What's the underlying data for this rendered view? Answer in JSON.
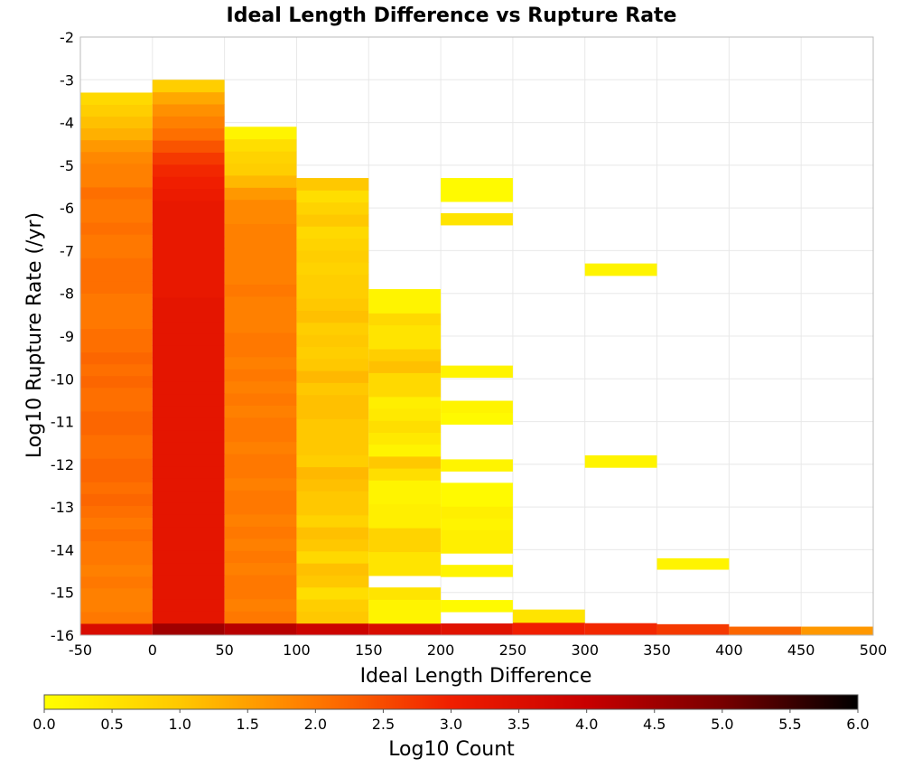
{
  "chart_data": {
    "type": "heatmap",
    "title": "Ideal Length Difference vs Rupture Rate",
    "xlabel": "Ideal Length Difference",
    "ylabel": "Log10 Rupture Rate (/yr)",
    "xlim": [
      -50,
      500
    ],
    "ylim": [
      -16,
      -2
    ],
    "x_bin_width": 50,
    "y_bin_height": 0.286,
    "grid": true,
    "x_ticks": [
      "-50",
      "0",
      "50",
      "100",
      "150",
      "200",
      "250",
      "300",
      "350",
      "400",
      "450",
      "500"
    ],
    "y_ticks": [
      "-2",
      "-3",
      "-4",
      "-5",
      "-6",
      "-7",
      "-8",
      "-9",
      "-10",
      "-11",
      "-12",
      "-13",
      "-14",
      "-15",
      "-16"
    ],
    "colorbar": {
      "label": "Log10 Count",
      "range": [
        0,
        6
      ],
      "ticks": [
        "0.0",
        "0.5",
        "1.0",
        "1.5",
        "2.0",
        "2.5",
        "3.0",
        "3.5",
        "4.0",
        "4.5",
        "5.0",
        "5.5",
        "6.0"
      ],
      "colors": [
        "#ffff00",
        "#ffc800",
        "#ff7800",
        "#f01e00",
        "#c80000",
        "#780000",
        "#000000"
      ]
    },
    "columns": [
      {
        "x0": -50,
        "y0": -16.0,
        "y1": -3.3,
        "values": [
          3.6,
          2.0,
          1.9,
          1.9,
          2.0,
          1.9,
          2.0,
          2.0,
          2.1,
          2.0,
          2.1,
          2.2,
          2.1,
          2.2,
          2.2,
          2.1,
          2.1,
          2.2,
          2.2,
          2.1,
          2.1,
          2.2,
          2.1,
          2.2,
          2.1,
          2.1,
          2.0,
          2.0,
          2.0,
          2.1,
          2.1,
          2.1,
          2.0,
          2.0,
          2.1,
          2.0,
          2.0,
          2.1,
          1.9,
          1.9,
          1.8,
          1.6,
          1.3,
          1.1,
          0.9,
          0.7
        ]
      },
      {
        "x0": 0,
        "y0": -16.0,
        "y1": -3.0,
        "values": [
          4.5,
          3.3,
          3.3,
          3.3,
          3.3,
          3.3,
          3.3,
          3.3,
          3.3,
          3.3,
          3.3,
          3.3,
          3.3,
          3.3,
          3.3,
          3.3,
          3.3,
          3.3,
          3.3,
          3.3,
          3.3,
          3.3,
          3.3,
          3.3,
          3.3,
          3.3,
          3.3,
          3.3,
          3.2,
          3.2,
          3.2,
          3.2,
          3.2,
          3.2,
          3.2,
          3.2,
          3.1,
          3.0,
          2.9,
          2.7,
          2.4,
          2.1,
          1.9,
          1.7,
          1.4,
          0.9
        ]
      },
      {
        "x0": 50,
        "y0": -16.0,
        "y1": -4.1,
        "values": [
          4.2,
          2.0,
          1.9,
          2.0,
          2.0,
          1.9,
          2.0,
          1.9,
          2.0,
          1.9,
          2.0,
          2.0,
          1.9,
          2.0,
          2.0,
          1.9,
          2.0,
          2.0,
          1.9,
          2.0,
          1.9,
          2.0,
          1.9,
          2.0,
          2.0,
          1.9,
          1.9,
          1.9,
          2.0,
          1.9,
          1.9,
          1.9,
          1.9,
          1.9,
          1.8,
          1.8,
          1.6,
          1.2,
          0.9,
          0.8,
          0.6,
          0.2
        ]
      },
      {
        "x0": 100,
        "y0": -16.0,
        "y1": -5.3,
        "values": [
          3.9,
          1.0,
          0.9,
          0.6,
          1.0,
          1.1,
          0.7,
          1.0,
          1.1,
          0.8,
          1.0,
          1.0,
          1.1,
          1.2,
          0.9,
          1.0,
          1.0,
          1.0,
          1.1,
          1.1,
          1.0,
          1.2,
          1.0,
          0.9,
          1.0,
          0.9,
          1.1,
          1.0,
          0.9,
          0.9,
          0.8,
          0.9,
          0.8,
          0.7,
          1.0,
          0.8,
          0.6,
          1.0
        ]
      },
      {
        "x0": 150,
        "y0": -16.0,
        "y1": -7.9,
        "values": [
          3.6,
          0.2,
          0.2,
          0.5,
          null,
          0.5,
          0.5,
          0.8,
          0.8,
          0.3,
          0.3,
          0.2,
          0.2,
          0.6,
          1.0,
          0.2,
          0.4,
          0.6,
          0.4,
          0.3,
          0.7,
          0.7,
          1.1,
          0.9,
          0.5,
          0.5,
          0.7,
          0.2,
          0.2
        ]
      },
      {
        "x0": 200,
        "y0": -16.0,
        "y1": -5.3,
        "values": [
          3.4,
          null,
          0.1,
          null,
          null,
          0.2,
          null,
          0.3,
          0.3,
          0.2,
          0.3,
          0.1,
          0.1,
          null,
          0.2,
          null,
          null,
          null,
          0.1,
          0.2,
          null,
          null,
          0.2,
          null,
          null,
          null,
          null,
          null,
          null,
          null,
          null,
          null,
          null,
          null,
          null,
          0.5,
          null,
          0.1,
          0.1
        ]
      },
      {
        "x0": 250,
        "y0": -16.0,
        "y1": -15.4,
        "values": [
          3.0,
          0.5
        ]
      },
      {
        "x0": 300,
        "y0": -16.0,
        "y1": -7.3,
        "values": [
          2.9,
          null,
          null,
          null,
          null,
          null,
          null,
          null,
          null,
          null,
          null,
          null,
          null,
          null,
          0.2,
          null,
          null,
          null,
          null,
          null,
          null,
          null,
          null,
          null,
          null,
          null,
          null,
          null,
          null,
          null,
          0.2
        ]
      },
      {
        "x0": 350,
        "y0": -16.0,
        "y1": -14.2,
        "values": [
          2.7,
          null,
          null,
          null,
          null,
          null,
          0.2
        ]
      },
      {
        "x0": 400,
        "y0": -16.0,
        "y1": -15.8,
        "values": [
          2.2
        ]
      },
      {
        "x0": 450,
        "y0": -16.0,
        "y1": -15.8,
        "values": [
          1.6
        ]
      }
    ]
  }
}
